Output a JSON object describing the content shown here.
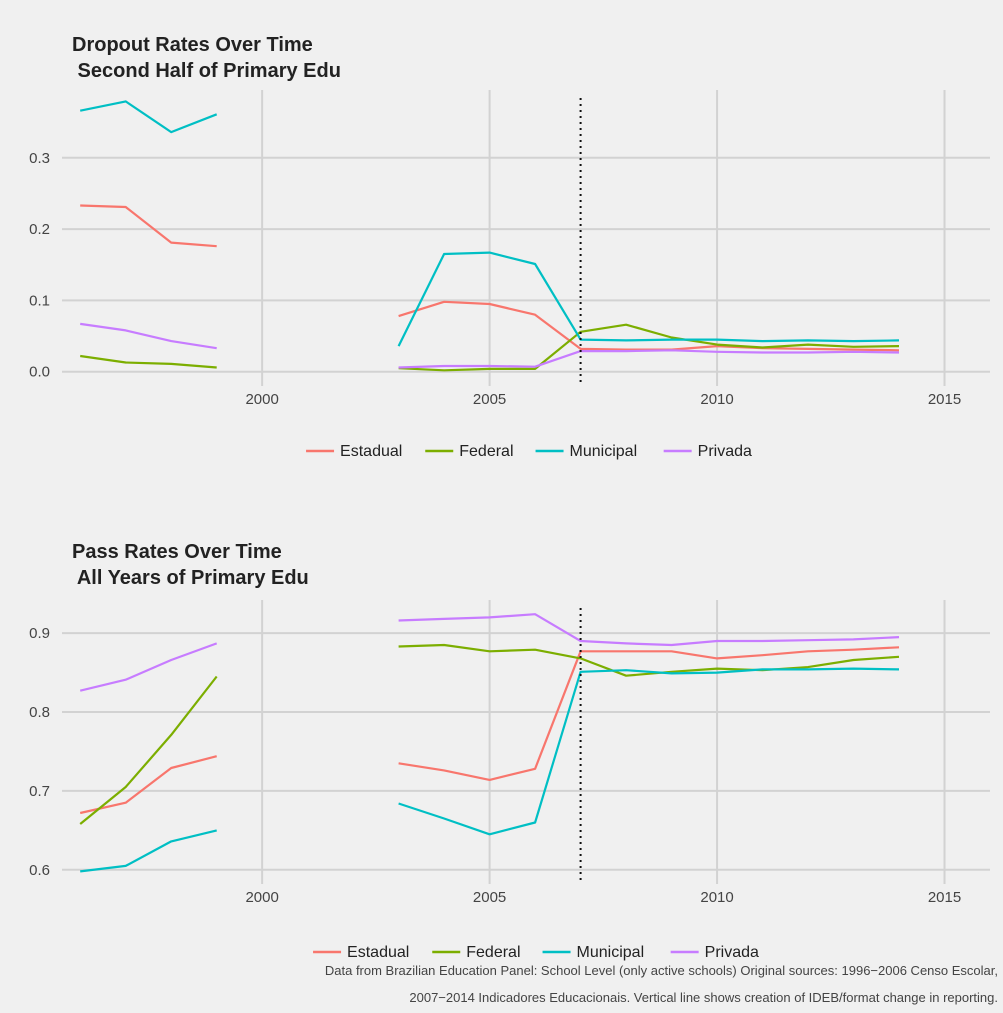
{
  "colors": {
    "Estadual": "#F8766D",
    "Federal": "#7CAE00",
    "Municipal": "#00BFC4",
    "Privada": "#C77CFF",
    "background": "#f0f0f0",
    "grid": "#d2d2d2"
  },
  "legend_entries": [
    "Estadual",
    "Federal",
    "Municipal",
    "Privada"
  ],
  "caption": {
    "line1": "Data from Brazilian Education Panel: School Level (only active schools) Original sources: 1996−2006 Censo Escolar,",
    "line2": "2007−2014 Indicadores Educacionais.  Vertical line shows creation of IDEB/format change in reporting."
  },
  "chart_data": [
    {
      "type": "line",
      "title_line1": "Dropout Rates Over Time",
      "title_line2": " Second Half of Primary Edu",
      "xlabel": "",
      "ylabel": "",
      "xlim": [
        1995.6,
        2016.0
      ],
      "ylim": [
        -0.02,
        0.395
      ],
      "x_ticks": [
        2000,
        2005,
        2010,
        2015
      ],
      "y_ticks": [
        0.0,
        0.1,
        0.2,
        0.3
      ],
      "y_tick_labels": [
        "0.0",
        "0.1",
        "0.2",
        "0.3"
      ],
      "vline": 2007,
      "grid": true,
      "legend_position": "bottom",
      "series": [
        {
          "name": "Estadual",
          "segments": [
            {
              "x": [
                1996,
                1997,
                1998,
                1999
              ],
              "y": [
                0.233,
                0.231,
                0.181,
                0.176
              ]
            },
            {
              "x": [
                2003,
                2004,
                2005,
                2006,
                2007,
                2008,
                2009,
                2010,
                2011,
                2012,
                2013,
                2014
              ],
              "y": [
                0.078,
                0.098,
                0.095,
                0.08,
                0.032,
                0.031,
                0.031,
                0.036,
                0.033,
                0.032,
                0.031,
                0.03
              ]
            }
          ]
        },
        {
          "name": "Federal",
          "segments": [
            {
              "x": [
                1996,
                1997,
                1998,
                1999
              ],
              "y": [
                0.022,
                0.013,
                0.011,
                0.006
              ]
            },
            {
              "x": [
                2003,
                2004,
                2005,
                2006,
                2007,
                2008,
                2009,
                2010,
                2011,
                2012,
                2013,
                2014
              ],
              "y": [
                0.005,
                0.002,
                0.004,
                0.004,
                0.056,
                0.066,
                0.048,
                0.038,
                0.034,
                0.038,
                0.035,
                0.036
              ]
            }
          ]
        },
        {
          "name": "Municipal",
          "segments": [
            {
              "x": [
                1996,
                1997,
                1998,
                1999
              ],
              "y": [
                0.366,
                0.379,
                0.336,
                0.361
              ]
            },
            {
              "x": [
                2003,
                2004,
                2005,
                2006,
                2007,
                2008,
                2009,
                2010,
                2011,
                2012,
                2013,
                2014
              ],
              "y": [
                0.036,
                0.165,
                0.167,
                0.151,
                0.045,
                0.044,
                0.045,
                0.045,
                0.043,
                0.044,
                0.043,
                0.044
              ]
            }
          ]
        },
        {
          "name": "Privada",
          "segments": [
            {
              "x": [
                1996,
                1997,
                1998,
                1999
              ],
              "y": [
                0.067,
                0.058,
                0.043,
                0.033
              ]
            },
            {
              "x": [
                2003,
                2004,
                2005,
                2006,
                2007,
                2008,
                2009,
                2010,
                2011,
                2012,
                2013,
                2014
              ],
              "y": [
                0.006,
                0.008,
                0.008,
                0.007,
                0.029,
                0.029,
                0.03,
                0.028,
                0.027,
                0.027,
                0.028,
                0.027
              ]
            }
          ]
        }
      ]
    },
    {
      "type": "line",
      "title_line1": "Pass Rates Over Time",
      "title_line2": " All Years of Primary Edu",
      "xlabel": "",
      "ylabel": "",
      "xlim": [
        1995.6,
        2016.0
      ],
      "ylim": [
        0.582,
        0.942
      ],
      "x_ticks": [
        2000,
        2005,
        2010,
        2015
      ],
      "y_ticks": [
        0.6,
        0.7,
        0.8,
        0.9
      ],
      "y_tick_labels": [
        "0.6",
        "0.7",
        "0.8",
        "0.9"
      ],
      "vline": 2007,
      "grid": true,
      "legend_position": "bottom",
      "series": [
        {
          "name": "Estadual",
          "segments": [
            {
              "x": [
                1996,
                1997,
                1998,
                1999
              ],
              "y": [
                0.672,
                0.685,
                0.729,
                0.744
              ]
            },
            {
              "x": [
                2003,
                2004,
                2005,
                2006,
                2007,
                2008,
                2009,
                2010,
                2011,
                2012,
                2013,
                2014
              ],
              "y": [
                0.735,
                0.726,
                0.714,
                0.728,
                0.877,
                0.877,
                0.877,
                0.868,
                0.872,
                0.877,
                0.879,
                0.882
              ]
            }
          ]
        },
        {
          "name": "Federal",
          "segments": [
            {
              "x": [
                1996,
                1997,
                1998,
                1999
              ],
              "y": [
                0.658,
                0.705,
                0.771,
                0.845
              ]
            },
            {
              "x": [
                2003,
                2004,
                2005,
                2006,
                2007,
                2008,
                2009,
                2010,
                2011,
                2012,
                2013,
                2014
              ],
              "y": [
                0.883,
                0.885,
                0.877,
                0.879,
                0.868,
                0.846,
                0.851,
                0.855,
                0.853,
                0.857,
                0.866,
                0.87
              ]
            }
          ]
        },
        {
          "name": "Municipal",
          "segments": [
            {
              "x": [
                1996,
                1997,
                1998,
                1999
              ],
              "y": [
                0.598,
                0.605,
                0.636,
                0.65
              ]
            },
            {
              "x": [
                2003,
                2004,
                2005,
                2006,
                2007,
                2008,
                2009,
                2010,
                2011,
                2012,
                2013,
                2014
              ],
              "y": [
                0.684,
                0.665,
                0.645,
                0.66,
                0.851,
                0.853,
                0.849,
                0.85,
                0.854,
                0.854,
                0.855,
                0.854
              ]
            }
          ]
        },
        {
          "name": "Privada",
          "segments": [
            {
              "x": [
                1996,
                1997,
                1998,
                1999
              ],
              "y": [
                0.827,
                0.841,
                0.866,
                0.887
              ]
            },
            {
              "x": [
                2003,
                2004,
                2005,
                2006,
                2007,
                2008,
                2009,
                2010,
                2011,
                2012,
                2013,
                2014
              ],
              "y": [
                0.916,
                0.918,
                0.92,
                0.924,
                0.89,
                0.887,
                0.885,
                0.89,
                0.89,
                0.891,
                0.892,
                0.895
              ]
            }
          ]
        }
      ]
    }
  ]
}
